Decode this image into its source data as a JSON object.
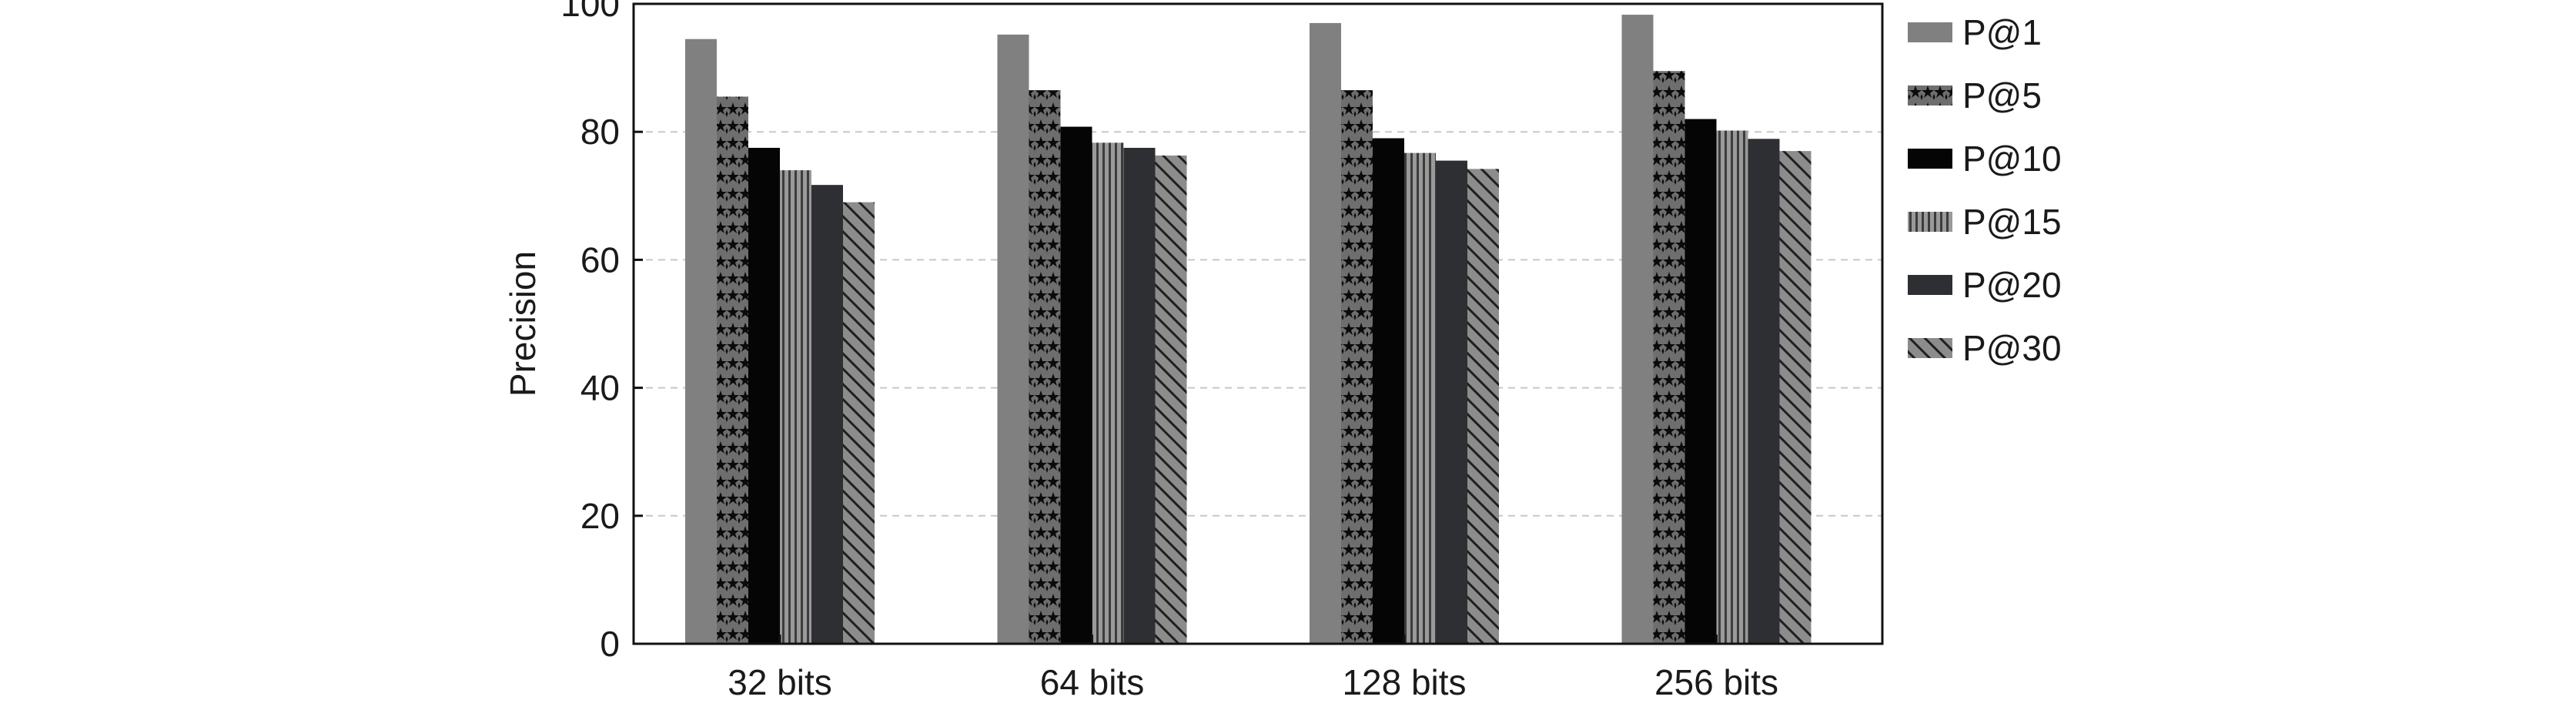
{
  "chart_data": {
    "type": "bar",
    "categories": [
      "32 bits",
      "64 bits",
      "128 bits",
      "256 bits"
    ],
    "ylabel": "Precision",
    "xlabel": "",
    "ylim": [
      0,
      100
    ],
    "yticks": [
      0,
      20,
      40,
      60,
      80,
      100
    ],
    "grid": "horizontal-dashed",
    "legend_position": "right-outside",
    "series": [
      {
        "name": "P@1",
        "fill": "solid-gray",
        "color": "#808080",
        "values": [
          94.5,
          95.2,
          97.0,
          98.3
        ]
      },
      {
        "name": "P@5",
        "fill": "star-pattern",
        "color": "#6e6e6e",
        "values": [
          85.5,
          86.5,
          86.5,
          89.5
        ]
      },
      {
        "name": "P@10",
        "fill": "solid-black",
        "color": "#050505",
        "values": [
          77.5,
          80.8,
          79.0,
          82.0
        ]
      },
      {
        "name": "P@15",
        "fill": "vertical-lines",
        "color": "#8a8a8a",
        "values": [
          74.0,
          78.3,
          76.7,
          80.2
        ]
      },
      {
        "name": "P@20",
        "fill": "solid-dark",
        "color": "#2e2f33",
        "values": [
          71.7,
          77.5,
          75.5,
          78.9
        ]
      },
      {
        "name": "P@30",
        "fill": "diagonal-hatch",
        "color": "#858585",
        "values": [
          69.0,
          76.3,
          74.2,
          77.0
        ]
      }
    ]
  }
}
